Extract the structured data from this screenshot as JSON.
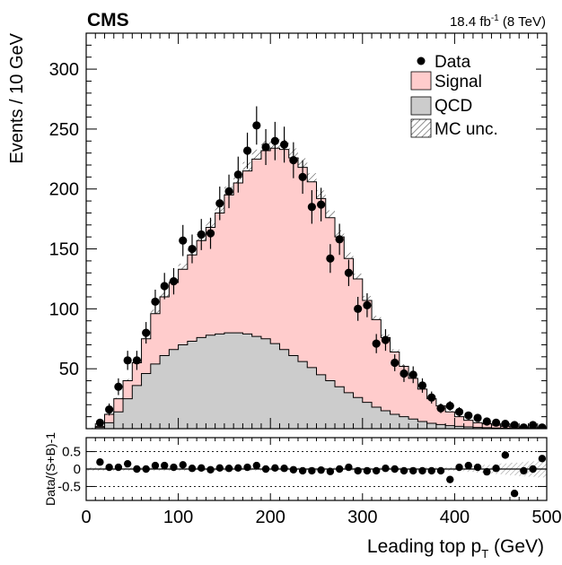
{
  "header": {
    "experiment": "CMS",
    "lumi_value": "18.4 fb",
    "lumi_exp": "-1",
    "energy": " (8 TeV)"
  },
  "legend": {
    "data": "Data",
    "signal": "Signal",
    "qcd": "QCD",
    "mc_unc": "MC unc."
  },
  "colors": {
    "signal_fill": "#ffcccc",
    "qcd_fill": "#cccccc",
    "line": "#000000"
  },
  "chart_data": [
    {
      "type": "bar",
      "panel": "main",
      "xlabel": "Leading top p_T (GeV)",
      "xlabel_main": "Leading top p",
      "xlabel_sub": "T",
      "xlabel_unit": " (GeV)",
      "ylabel": "Events / 10 GeV",
      "xlim": [
        0,
        500
      ],
      "ylim": [
        0,
        330
      ],
      "bin_width": 10,
      "xticks": [
        0,
        100,
        200,
        300,
        400,
        500
      ],
      "yticks": [
        50,
        100,
        150,
        200,
        250,
        300
      ],
      "bin_low_edges": [
        0,
        10,
        20,
        30,
        40,
        50,
        60,
        70,
        80,
        90,
        100,
        110,
        120,
        130,
        140,
        150,
        160,
        170,
        180,
        190,
        200,
        210,
        220,
        230,
        240,
        250,
        260,
        270,
        280,
        290,
        300,
        310,
        320,
        330,
        340,
        350,
        360,
        370,
        380,
        390,
        400,
        410,
        420,
        430,
        440,
        450,
        460,
        470,
        480,
        490
      ],
      "series": [
        {
          "name": "Signal",
          "stacked_total": [
            0,
            2,
            12,
            25,
            40,
            55,
            75,
            96,
            110,
            122,
            133,
            145,
            157,
            168,
            180,
            195,
            205,
            215,
            225,
            232,
            234,
            233,
            226,
            218,
            206,
            192,
            176,
            160,
            142,
            125,
            107,
            91,
            76,
            64,
            52,
            42,
            33,
            25,
            19,
            14,
            10,
            7,
            5,
            4,
            3,
            2,
            1.5,
            1,
            0.8,
            0.5
          ]
        },
        {
          "name": "QCD",
          "values": [
            0,
            1,
            5,
            14,
            25,
            36,
            46,
            54,
            61,
            66,
            70,
            73,
            76,
            78,
            79,
            80,
            80,
            79,
            77,
            75,
            71,
            66,
            61,
            56,
            51,
            45,
            40,
            35,
            30,
            26,
            22,
            18,
            15,
            12,
            10,
            8,
            6,
            4.5,
            3.5,
            2.5,
            2,
            1.5,
            1,
            0.8,
            0.6,
            0.5,
            0.4,
            0.3,
            0.2,
            0.1
          ]
        },
        {
          "name": "Data",
          "x": [
            15,
            25,
            35,
            45,
            55,
            65,
            75,
            85,
            95,
            105,
            115,
            125,
            135,
            145,
            155,
            165,
            175,
            185,
            195,
            205,
            215,
            225,
            235,
            245,
            255,
            265,
            275,
            285,
            295,
            305,
            315,
            325,
            335,
            345,
            355,
            365,
            375,
            385,
            395,
            405,
            415,
            425,
            435,
            445,
            455,
            465,
            475,
            485,
            495
          ],
          "y": [
            5,
            16,
            35,
            57,
            57,
            80,
            106,
            119,
            123,
            157,
            150,
            162,
            163,
            188,
            198,
            212,
            232,
            253,
            235,
            240,
            237,
            224,
            210,
            185,
            187,
            142,
            158,
            130,
            100,
            103,
            71,
            74,
            55,
            46,
            45,
            36,
            26,
            17,
            19,
            14,
            11,
            9,
            6,
            5,
            4,
            3,
            1,
            3,
            1
          ],
          "err": [
            3,
            5,
            7,
            8,
            8,
            9,
            10,
            11,
            11,
            13,
            12,
            13,
            13,
            14,
            14,
            15,
            15,
            16,
            15,
            16,
            15,
            15,
            14,
            14,
            14,
            12,
            13,
            11,
            10,
            10,
            8,
            9,
            7,
            7,
            7,
            6,
            5,
            4,
            4,
            4,
            3,
            3,
            3,
            2,
            2,
            2,
            1,
            2,
            1
          ]
        }
      ]
    },
    {
      "type": "scatter",
      "panel": "ratio",
      "ylabel": "Data/(S+B)-1",
      "xlim": [
        0,
        500
      ],
      "ylim": [
        -0.9,
        0.9
      ],
      "yticks": [
        0.5,
        0,
        -0.5
      ],
      "ytick_labels": [
        "0.5",
        "0",
        "-0.5"
      ],
      "reference_lines": [
        0.5,
        -0.5
      ],
      "x": [
        15,
        25,
        35,
        45,
        55,
        65,
        75,
        85,
        95,
        105,
        115,
        125,
        135,
        145,
        155,
        165,
        175,
        185,
        195,
        205,
        215,
        225,
        235,
        245,
        255,
        265,
        275,
        285,
        295,
        305,
        315,
        325,
        335,
        345,
        355,
        365,
        375,
        385,
        395,
        405,
        415,
        425,
        435,
        445,
        455,
        465,
        475,
        485,
        495
      ],
      "y": [
        0.2,
        0.05,
        0.05,
        0.15,
        0,
        0,
        0.1,
        0.1,
        0.05,
        0.12,
        0.02,
        0.03,
        -0.02,
        0.03,
        0.02,
        0.03,
        0.05,
        0.1,
        0,
        0.03,
        0.02,
        -0.02,
        -0.05,
        -0.05,
        -0.03,
        -0.07,
        0,
        0.05,
        -0.05,
        -0.05,
        -0.05,
        0.02,
        0,
        -0.05,
        -0.05,
        -0.05,
        -0.05,
        -0.05,
        -0.3,
        0.05,
        0.1,
        0.05,
        -0.08,
        0.02,
        0.4,
        -0.7,
        -0.05,
        0,
        0.3
      ]
    }
  ]
}
